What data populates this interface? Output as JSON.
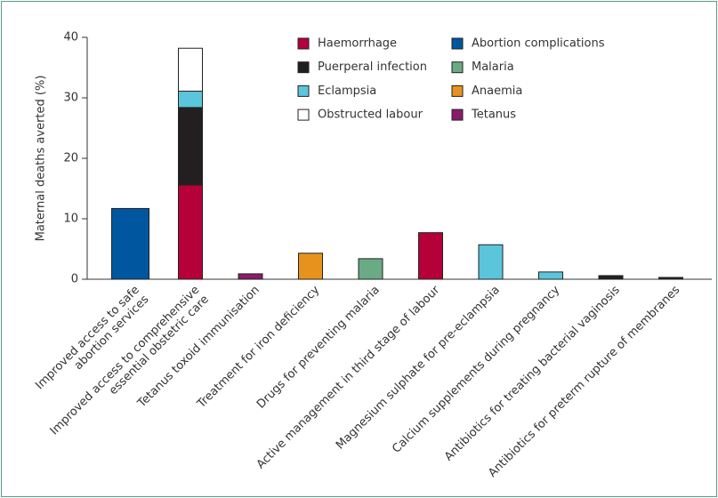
{
  "chart_data": {
    "type": "stacked-bar",
    "y_label": "Maternal deaths averted (%)",
    "categories": [
      [
        "Improved access to safe",
        "abortion services"
      ],
      [
        "Improved access to comprehensive",
        "essential obstetric care"
      ],
      "Tetanus toxoid immunisation",
      "Treatment for iron deficiency",
      "Drugs for preventing malaria",
      "Active management in third stage of labour",
      "Magnesium sulphate for pre-eclampsia",
      "Calcium supplements during pregnancy",
      "Antibiotics for treating bacterial vaginosis",
      "Antibiotics for preterm rupture of membranes"
    ],
    "series": [
      {
        "name": "Haemorrhage",
        "color": "#b5003a",
        "values": [
          null,
          15.6,
          null,
          null,
          null,
          7.7,
          null,
          null,
          null,
          null
        ]
      },
      {
        "name": "Puerperal infection",
        "color": "#231f20",
        "values": [
          null,
          12.8,
          null,
          null,
          null,
          null,
          null,
          null,
          0.6,
          0.3
        ]
      },
      {
        "name": "Eclampsia",
        "color": "#5bc5dc",
        "values": [
          null,
          2.7,
          null,
          null,
          null,
          null,
          5.7,
          1.2,
          null,
          null
        ]
      },
      {
        "name": "Obstructed labour",
        "color": "#ffffff",
        "values": [
          null,
          7.1,
          null,
          null,
          null,
          null,
          null,
          null,
          null,
          null
        ]
      },
      {
        "name": "Abortion complications",
        "color": "#0057a0",
        "values": [
          11.7,
          null,
          null,
          null,
          null,
          null,
          null,
          null,
          null,
          null
        ]
      },
      {
        "name": "Malaria",
        "color": "#6aaa85",
        "values": [
          null,
          null,
          null,
          null,
          3.4,
          null,
          null,
          null,
          null,
          null
        ]
      },
      {
        "name": "Anaemia",
        "color": "#e8921e",
        "values": [
          null,
          null,
          null,
          4.3,
          null,
          null,
          null,
          null,
          null,
          null
        ]
      },
      {
        "name": "Tetanus",
        "color": "#8b1a6b",
        "values": [
          null,
          null,
          0.9,
          null,
          null,
          null,
          null,
          null,
          null,
          null
        ]
      }
    ],
    "ylim": [
      0,
      40
    ],
    "yticks": [
      0,
      10,
      20,
      30,
      40
    ],
    "legend": "top-right"
  }
}
